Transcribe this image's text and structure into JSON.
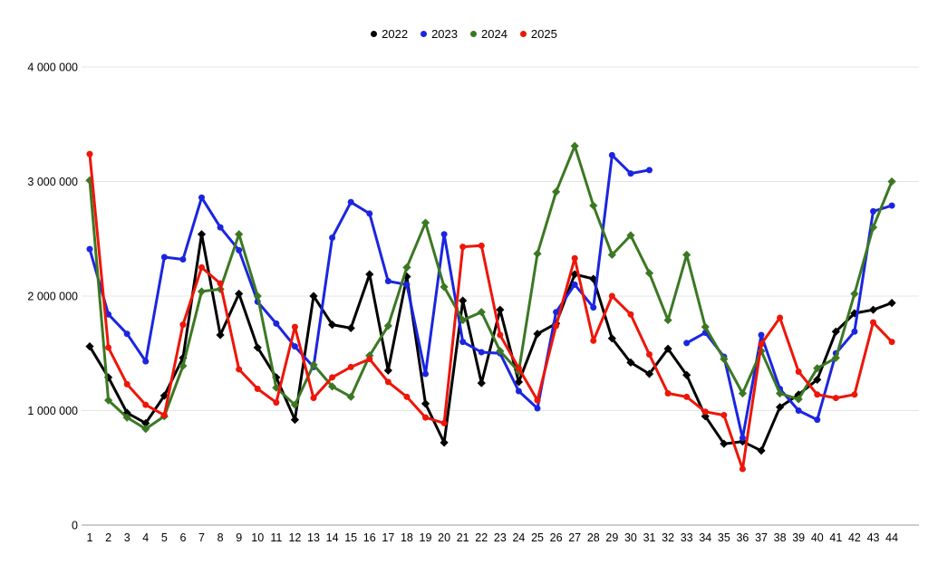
{
  "legend": {
    "items": [
      {
        "label": "2022",
        "color": "#000000"
      },
      {
        "label": "2023",
        "color": "#1b25e0"
      },
      {
        "label": "2024",
        "color": "#3c7823"
      },
      {
        "label": "2025",
        "color": "#ee1509"
      }
    ]
  },
  "y_axis": {
    "tick_labels": [
      "0",
      "1 000 000",
      "2 000 000",
      "3 000 000",
      "4 000 000"
    ],
    "tick_values": [
      0,
      1000000,
      2000000,
      3000000,
      4000000
    ]
  },
  "chart_data": {
    "type": "line",
    "title": "",
    "xlabel": "",
    "ylabel": "",
    "ylim": [
      0,
      4000000
    ],
    "grid": true,
    "legend_position": "top-center",
    "categories": [
      "1",
      "2",
      "3",
      "4",
      "5",
      "6",
      "7",
      "8",
      "9",
      "10",
      "11",
      "12",
      "13",
      "14",
      "15",
      "16",
      "17",
      "18",
      "19",
      "20",
      "21",
      "22",
      "23",
      "24",
      "25",
      "26",
      "27",
      "28",
      "29",
      "30",
      "31",
      "32",
      "33",
      "34",
      "35",
      "36",
      "37",
      "38",
      "39",
      "40",
      "41",
      "42",
      "43",
      "44"
    ],
    "series": [
      {
        "name": "2022",
        "color": "#000000",
        "marker": "diamond",
        "values": [
          1560000,
          1290000,
          980000,
          890000,
          1130000,
          1460000,
          2540000,
          1660000,
          2020000,
          1550000,
          1290000,
          920000,
          2000000,
          1750000,
          1720000,
          2190000,
          1350000,
          2170000,
          1060000,
          720000,
          1960000,
          1240000,
          1880000,
          1250000,
          1670000,
          1760000,
          2190000,
          2150000,
          1630000,
          1420000,
          1320000,
          1540000,
          1310000,
          950000,
          710000,
          730000,
          650000,
          1030000,
          1140000,
          1270000,
          1690000,
          1850000,
          1880000,
          1940000
        ]
      },
      {
        "name": "2023",
        "color": "#1b25e0",
        "marker": "circle",
        "values": [
          2410000,
          1840000,
          1670000,
          1430000,
          2340000,
          2320000,
          2860000,
          2600000,
          2400000,
          1950000,
          1760000,
          1560000,
          1380000,
          2510000,
          2820000,
          2720000,
          2130000,
          2100000,
          1320000,
          2540000,
          1600000,
          1510000,
          1500000,
          1170000,
          1020000,
          1860000,
          2100000,
          1900000,
          3230000,
          3070000,
          3100000,
          null,
          1590000,
          1680000,
          1470000,
          760000,
          1660000,
          1190000,
          1000000,
          920000,
          1500000,
          1690000,
          2740000,
          2790000
        ]
      },
      {
        "name": "2024",
        "color": "#3c7823",
        "marker": "diamond",
        "values": [
          3010000,
          1090000,
          940000,
          840000,
          950000,
          1390000,
          2040000,
          2060000,
          2540000,
          2000000,
          1200000,
          1050000,
          1400000,
          1210000,
          1120000,
          1480000,
          1740000,
          2250000,
          2640000,
          2080000,
          1790000,
          1860000,
          1520000,
          1340000,
          2370000,
          2910000,
          3310000,
          2790000,
          2360000,
          2530000,
          2200000,
          1790000,
          2360000,
          1730000,
          1450000,
          1150000,
          1520000,
          1150000,
          1100000,
          1370000,
          1460000,
          2020000,
          2600000,
          3000000
        ]
      },
      {
        "name": "2025",
        "color": "#ee1509",
        "marker": "circle",
        "values": [
          3240000,
          1550000,
          1230000,
          1050000,
          960000,
          1750000,
          2250000,
          2110000,
          1360000,
          1190000,
          1070000,
          1730000,
          1110000,
          1290000,
          1380000,
          1450000,
          1250000,
          1120000,
          940000,
          890000,
          2430000,
          2440000,
          1660000,
          1370000,
          1090000,
          1740000,
          2330000,
          1610000,
          2000000,
          1840000,
          1490000,
          1150000,
          1120000,
          990000,
          960000,
          490000,
          1580000,
          1810000,
          1340000,
          1140000,
          1110000,
          1140000,
          1770000,
          1600000
        ]
      }
    ]
  }
}
